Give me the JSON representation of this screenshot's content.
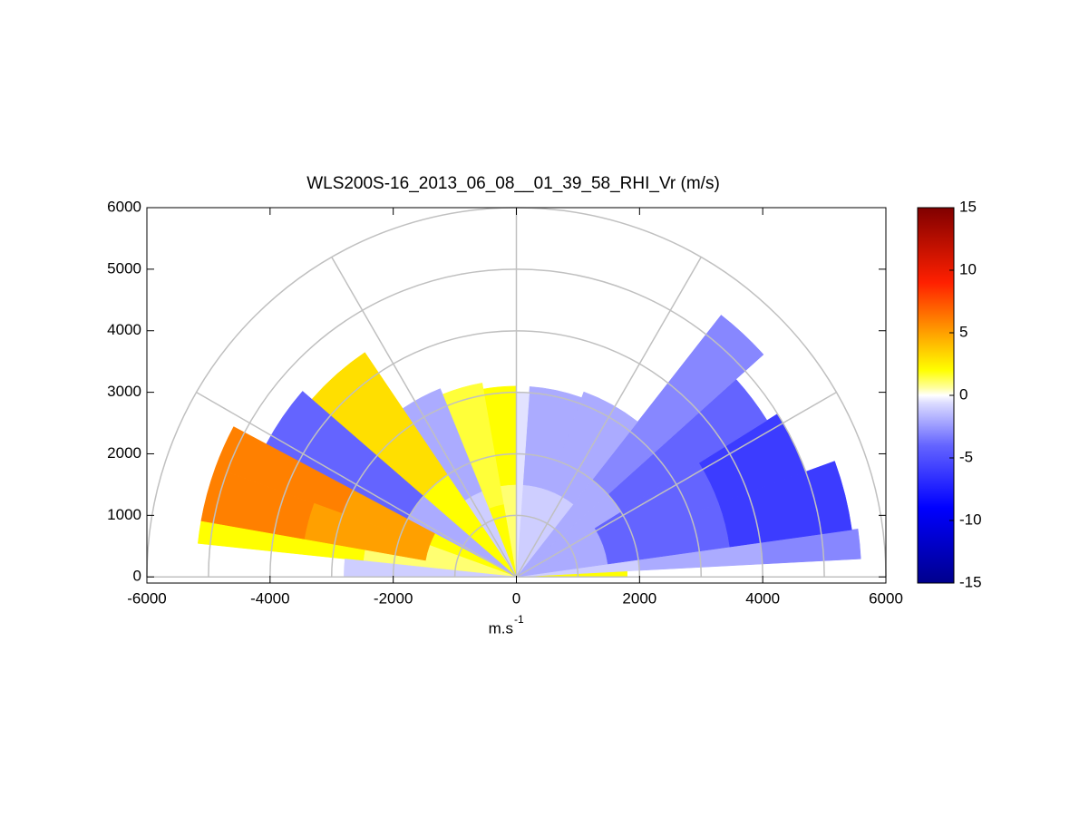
{
  "chart_data": {
    "type": "rhi",
    "title": "WLS200S-16_2013_06_08__01_39_58_RHI_Vr (m/s)",
    "xlabel": {
      "text": "m.s",
      "sup": "-1"
    },
    "xlim": [
      -6000,
      6000
    ],
    "ylim": [
      -100,
      6000
    ],
    "xticks": [
      -6000,
      -4000,
      -2000,
      0,
      2000,
      4000,
      6000
    ],
    "yticks": [
      0,
      1000,
      2000,
      3000,
      4000,
      5000,
      6000
    ],
    "rings": [
      1000,
      2000,
      3000,
      4000,
      5000,
      6000
    ],
    "spokes": [
      0,
      30,
      60,
      90,
      120,
      150,
      180
    ],
    "clim": [
      -15,
      15
    ],
    "cticks": [
      -15,
      -10,
      -5,
      0,
      5,
      10,
      15
    ],
    "colormap": [
      [
        -15,
        "#00008c"
      ],
      [
        -9,
        "#0000ff"
      ],
      [
        -4,
        "#6464ff"
      ],
      [
        -0.6,
        "#dcdcff"
      ],
      [
        0,
        "#ffffff"
      ],
      [
        0.6,
        "#ffffa0"
      ],
      [
        2,
        "#ffff00"
      ],
      [
        5,
        "#ffa000"
      ],
      [
        9,
        "#ff2000"
      ],
      [
        15,
        "#800000"
      ]
    ],
    "sectors": [
      {
        "angles": [
          0,
          3
        ],
        "ranges": [
          0,
          1800
        ],
        "value": 2
      },
      {
        "angles": [
          3,
          8
        ],
        "ranges": [
          0,
          2000
        ],
        "value": -1
      },
      {
        "angles": [
          3,
          8
        ],
        "ranges": [
          2000,
          4000
        ],
        "value": -2
      },
      {
        "angles": [
          3,
          8
        ],
        "ranges": [
          4000,
          5600
        ],
        "value": -3
      },
      {
        "angles": [
          8,
          20
        ],
        "ranges": [
          0,
          1500
        ],
        "value": -2
      },
      {
        "angles": [
          8,
          20
        ],
        "ranges": [
          1500,
          3500
        ],
        "value": -4
      },
      {
        "angles": [
          8,
          20
        ],
        "ranges": [
          3500,
          5500
        ],
        "value": -6
      },
      {
        "angles": [
          20,
          32
        ],
        "ranges": [
          0,
          1500
        ],
        "value": -2
      },
      {
        "angles": [
          20,
          32
        ],
        "ranges": [
          1500,
          3500
        ],
        "value": -4
      },
      {
        "angles": [
          20,
          32
        ],
        "ranges": [
          3500,
          5000
        ],
        "value": -6
      },
      {
        "angles": [
          32,
          42
        ],
        "ranges": [
          0,
          2000
        ],
        "value": -2
      },
      {
        "angles": [
          32,
          42
        ],
        "ranges": [
          2000,
          4800
        ],
        "value": -4
      },
      {
        "angles": [
          42,
          52
        ],
        "ranges": [
          0,
          2000
        ],
        "value": -2
      },
      {
        "angles": [
          42,
          52
        ],
        "ranges": [
          2000,
          5400
        ],
        "value": -3
      },
      {
        "angles": [
          52,
          70
        ],
        "ranges": [
          0,
          1500
        ],
        "value": -1
      },
      {
        "angles": [
          52,
          70
        ],
        "ranges": [
          1500,
          3200
        ],
        "value": -2
      },
      {
        "angles": [
          70,
          86
        ],
        "ranges": [
          0,
          1500
        ],
        "value": -1
      },
      {
        "angles": [
          70,
          86
        ],
        "ranges": [
          1500,
          3100
        ],
        "value": -2
      },
      {
        "angles": [
          86,
          90
        ],
        "ranges": [
          0,
          3000
        ],
        "value": -0.5
      },
      {
        "angles": [
          90,
          100
        ],
        "ranges": [
          0,
          1500
        ],
        "value": 1
      },
      {
        "angles": [
          90,
          100
        ],
        "ranges": [
          1500,
          3100
        ],
        "value": 2
      },
      {
        "angles": [
          100,
          112
        ],
        "ranges": [
          0,
          1200
        ],
        "value": 2
      },
      {
        "angles": [
          100,
          112
        ],
        "ranges": [
          1200,
          3200
        ],
        "value": 1.5
      },
      {
        "angles": [
          112,
          124
        ],
        "ranges": [
          0,
          1500
        ],
        "value": -1
      },
      {
        "angles": [
          112,
          124
        ],
        "ranges": [
          1500,
          3300
        ],
        "value": -2
      },
      {
        "angles": [
          124,
          139
        ],
        "ranges": [
          0,
          2000
        ],
        "value": 2
      },
      {
        "angles": [
          124,
          139
        ],
        "ranges": [
          2000,
          4400
        ],
        "value": 3
      },
      {
        "angles": [
          139,
          152
        ],
        "ranges": [
          0,
          2000
        ],
        "value": -2
      },
      {
        "angles": [
          139,
          152
        ],
        "ranges": [
          2000,
          4600
        ],
        "value": -4
      },
      {
        "angles": [
          152,
          160
        ],
        "ranges": [
          0,
          1500
        ],
        "value": 2
      },
      {
        "angles": [
          152,
          160
        ],
        "ranges": [
          1500,
          3000
        ],
        "value": 5
      },
      {
        "angles": [
          152,
          160
        ],
        "ranges": [
          3000,
          5200
        ],
        "value": 6
      },
      {
        "angles": [
          160,
          170
        ],
        "ranges": [
          0,
          1500
        ],
        "value": 1
      },
      {
        "angles": [
          160,
          170
        ],
        "ranges": [
          1500,
          3500
        ],
        "value": 5
      },
      {
        "angles": [
          160,
          170
        ],
        "ranges": [
          3500,
          5200
        ],
        "value": 6
      },
      {
        "angles": [
          170,
          174
        ],
        "ranges": [
          0,
          2500
        ],
        "value": 1
      },
      {
        "angles": [
          170,
          174
        ],
        "ranges": [
          2500,
          5200
        ],
        "value": 2
      },
      {
        "angles": [
          174,
          180
        ],
        "ranges": [
          0,
          2800
        ],
        "value": -1
      }
    ]
  }
}
